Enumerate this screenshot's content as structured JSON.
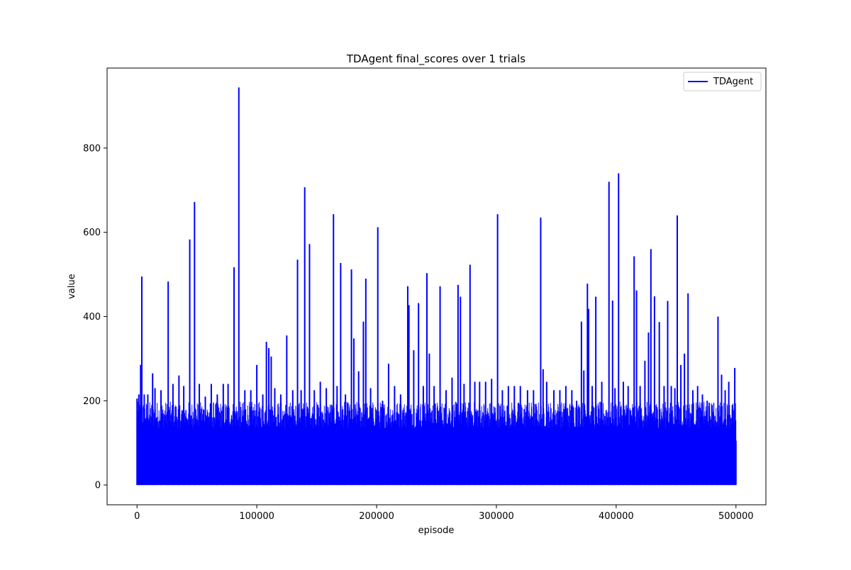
{
  "chart_data": {
    "type": "line",
    "title": "TDAgent final_scores over 1 trials",
    "xlabel": "episode",
    "ylabel": "value",
    "xlim": [
      -25000,
      525000
    ],
    "ylim": [
      -47,
      990
    ],
    "xticks": [
      0,
      100000,
      200000,
      300000,
      400000,
      500000
    ],
    "xtick_labels": [
      "0",
      "100000",
      "200000",
      "300000",
      "400000",
      "500000"
    ],
    "yticks": [
      0,
      200,
      400,
      600,
      800
    ],
    "ytick_labels": [
      "0",
      "200",
      "400",
      "600",
      "800"
    ],
    "grid": false,
    "legend": {
      "position": "top-right",
      "entries": [
        "TDAgent"
      ]
    },
    "series": [
      {
        "name": "TDAgent",
        "color": "#0000ff",
        "x_start": 0,
        "x_end": 500000,
        "baseline": 0,
        "typical_band_top": 180,
        "peaks": [
          [
            0,
            205
          ],
          [
            1500,
            215
          ],
          [
            3000,
            285
          ],
          [
            4000,
            495
          ],
          [
            6000,
            215
          ],
          [
            9000,
            215
          ],
          [
            13000,
            265
          ],
          [
            15000,
            230
          ],
          [
            20000,
            225
          ],
          [
            26000,
            483
          ],
          [
            30000,
            240
          ],
          [
            35000,
            260
          ],
          [
            39000,
            235
          ],
          [
            44000,
            583
          ],
          [
            48000,
            672
          ],
          [
            52000,
            240
          ],
          [
            57000,
            210
          ],
          [
            62000,
            240
          ],
          [
            67000,
            215
          ],
          [
            72000,
            240
          ],
          [
            76000,
            240
          ],
          [
            81000,
            517
          ],
          [
            85000,
            944
          ],
          [
            90000,
            225
          ],
          [
            95000,
            225
          ],
          [
            100000,
            285
          ],
          [
            105000,
            215
          ],
          [
            108000,
            340
          ],
          [
            110000,
            325
          ],
          [
            112000,
            305
          ],
          [
            115000,
            230
          ],
          [
            120000,
            215
          ],
          [
            125000,
            355
          ],
          [
            130000,
            225
          ],
          [
            134000,
            535
          ],
          [
            137000,
            225
          ],
          [
            140000,
            707
          ],
          [
            144000,
            572
          ],
          [
            148000,
            225
          ],
          [
            153000,
            245
          ],
          [
            158000,
            230
          ],
          [
            164000,
            643
          ],
          [
            167000,
            235
          ],
          [
            170000,
            527
          ],
          [
            174000,
            215
          ],
          [
            179000,
            512
          ],
          [
            181000,
            348
          ],
          [
            185000,
            270
          ],
          [
            189000,
            388
          ],
          [
            191000,
            490
          ],
          [
            195000,
            230
          ],
          [
            201000,
            612
          ],
          [
            205000,
            200
          ],
          [
            210000,
            288
          ],
          [
            215000,
            235
          ],
          [
            220000,
            215
          ],
          [
            226000,
            472
          ],
          [
            227000,
            427
          ],
          [
            231000,
            320
          ],
          [
            235000,
            432
          ],
          [
            239000,
            235
          ],
          [
            242000,
            503
          ],
          [
            244000,
            312
          ],
          [
            248000,
            235
          ],
          [
            253000,
            472
          ],
          [
            258000,
            225
          ],
          [
            263000,
            255
          ],
          [
            268000,
            475
          ],
          [
            270000,
            447
          ],
          [
            273000,
            240
          ],
          [
            278000,
            523
          ],
          [
            282000,
            245
          ],
          [
            286000,
            245
          ],
          [
            291000,
            245
          ],
          [
            296000,
            252
          ],
          [
            301000,
            643
          ],
          [
            305000,
            225
          ],
          [
            310000,
            235
          ],
          [
            315000,
            235
          ],
          [
            320000,
            235
          ],
          [
            326000,
            225
          ],
          [
            331000,
            225
          ],
          [
            337000,
            635
          ],
          [
            339000,
            275
          ],
          [
            342000,
            245
          ],
          [
            348000,
            225
          ],
          [
            353000,
            225
          ],
          [
            358000,
            235
          ],
          [
            363000,
            225
          ],
          [
            367000,
            200
          ],
          [
            371000,
            388
          ],
          [
            373000,
            272
          ],
          [
            376000,
            478
          ],
          [
            377000,
            418
          ],
          [
            380000,
            235
          ],
          [
            383000,
            447
          ],
          [
            388000,
            245
          ],
          [
            394000,
            720
          ],
          [
            397000,
            438
          ],
          [
            399000,
            230
          ],
          [
            402000,
            740
          ],
          [
            406000,
            245
          ],
          [
            410000,
            235
          ],
          [
            415000,
            543
          ],
          [
            417000,
            462
          ],
          [
            420000,
            235
          ],
          [
            424000,
            295
          ],
          [
            427000,
            362
          ],
          [
            429000,
            560
          ],
          [
            432000,
            448
          ],
          [
            436000,
            387
          ],
          [
            440000,
            235
          ],
          [
            443000,
            437
          ],
          [
            446000,
            235
          ],
          [
            449000,
            230
          ],
          [
            451000,
            640
          ],
          [
            454000,
            285
          ],
          [
            457000,
            312
          ],
          [
            460000,
            455
          ],
          [
            464000,
            225
          ],
          [
            468000,
            235
          ],
          [
            472000,
            215
          ],
          [
            476000,
            200
          ],
          [
            480000,
            190
          ],
          [
            485000,
            400
          ],
          [
            488000,
            262
          ],
          [
            491000,
            225
          ],
          [
            494000,
            245
          ],
          [
            497000,
            190
          ],
          [
            499000,
            278
          ],
          [
            500000,
            105
          ]
        ]
      }
    ]
  }
}
